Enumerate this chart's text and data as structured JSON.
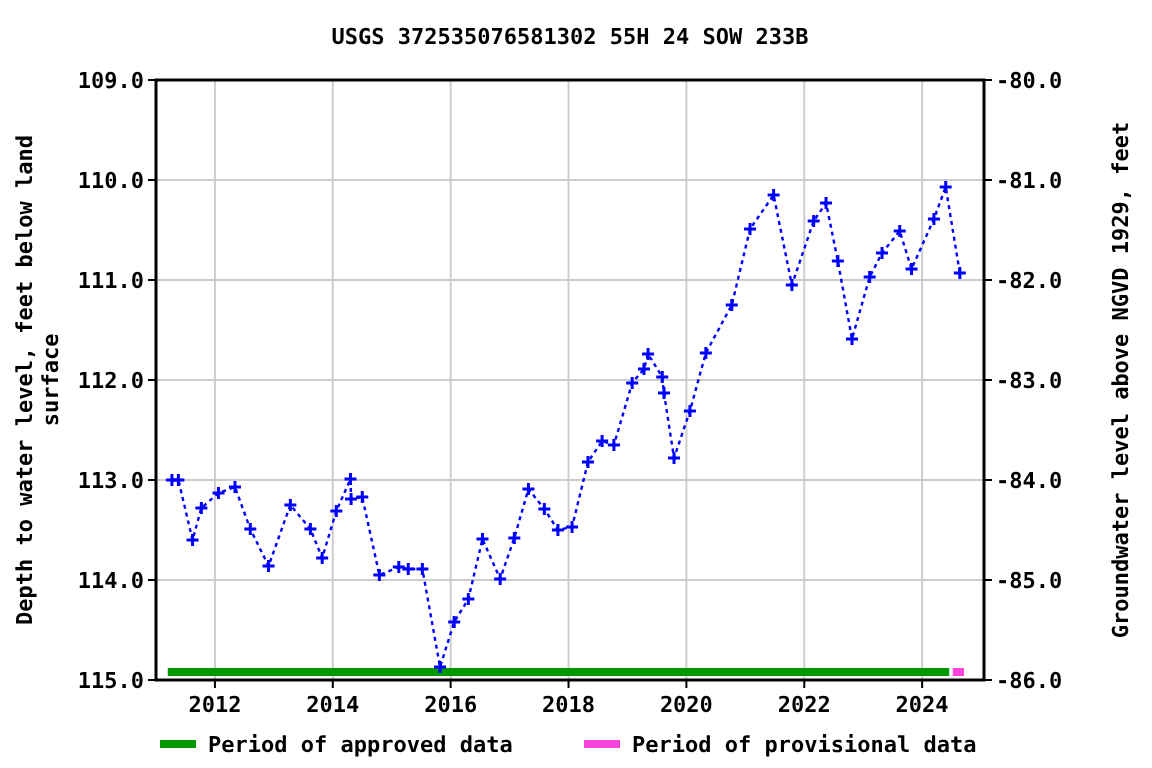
{
  "chart_data": {
    "type": "line",
    "title": "USGS 372535076581302 55H 24 SOW 233B",
    "ylabel": "Depth to water level, feet below land surface",
    "y2label": "Groundwater level above NGVD 1929, feet",
    "xlim": [
      2011,
      2025.05
    ],
    "xticks": [
      2012,
      2014,
      2016,
      2018,
      2020,
      2022,
      2024
    ],
    "ylim": [
      115,
      109
    ],
    "yticks": [
      {
        "value": 109,
        "label": "109.0"
      },
      {
        "value": 110,
        "label": "110.0"
      },
      {
        "value": 111,
        "label": "111.0"
      },
      {
        "value": 112,
        "label": "112.0"
      },
      {
        "value": 113,
        "label": "113.0"
      },
      {
        "value": 114,
        "label": "114.0"
      },
      {
        "value": 115,
        "label": "115.0"
      }
    ],
    "y2lim": [
      -86,
      -80
    ],
    "y2ticks": [
      {
        "value": -80,
        "label": "-80.0"
      },
      {
        "value": -81,
        "label": "-81.0"
      },
      {
        "value": -82,
        "label": "-82.0"
      },
      {
        "value": -83,
        "label": "-83.0"
      },
      {
        "value": -84,
        "label": "-84.0"
      },
      {
        "value": -85,
        "label": "-85.0"
      },
      {
        "value": -86,
        "label": "-86.0"
      }
    ],
    "grid": true,
    "marker": "cross",
    "line_style": "dotted",
    "legend": "bottom",
    "x": [
      2011.27,
      2011.38,
      2011.62,
      2011.77,
      2012.06,
      2012.34,
      2012.6,
      2012.91,
      2013.28,
      2013.62,
      2013.82,
      2014.06,
      2014.3,
      2014.31,
      2014.5,
      2014.79,
      2015.12,
      2015.28,
      2015.52,
      2015.82,
      2016.06,
      2016.3,
      2016.54,
      2016.84,
      2017.08,
      2017.32,
      2017.59,
      2017.82,
      2018.06,
      2018.33,
      2018.57,
      2018.77,
      2019.08,
      2019.28,
      2019.35,
      2019.59,
      2019.62,
      2019.79,
      2020.06,
      2020.33,
      2020.77,
      2021.08,
      2021.48,
      2021.79,
      2022.16,
      2022.37,
      2022.57,
      2022.81,
      2023.11,
      2023.32,
      2023.62,
      2023.82,
      2024.2,
      2024.4,
      2024.64
    ],
    "series": [
      {
        "color": "#0000ff",
        "values": [
          113.0,
          113.0,
          113.6,
          113.28,
          113.13,
          113.07,
          113.49,
          113.86,
          113.25,
          113.49,
          113.78,
          113.31,
          112.99,
          113.19,
          113.17,
          113.95,
          113.87,
          113.89,
          113.89,
          114.87,
          114.42,
          114.19,
          113.59,
          113.99,
          113.58,
          113.09,
          113.29,
          113.5,
          113.47,
          112.82,
          112.61,
          112.65,
          112.03,
          111.89,
          111.74,
          111.97,
          112.13,
          112.78,
          112.31,
          111.73,
          111.25,
          110.49,
          110.15,
          111.05,
          110.41,
          110.23,
          110.81,
          111.59,
          110.97,
          110.73,
          110.51,
          110.89,
          110.39,
          110.07,
          110.93
        ]
      },
      {
        "name": "Period of approved data",
        "color": "#009900",
        "marker": "none",
        "line_style": "solid",
        "x": [
          2011.2,
          2024.46
        ],
        "values": [
          114.92,
          114.92
        ]
      },
      {
        "name": "Period of provisional data",
        "color": "#ff44dd",
        "marker": "none",
        "line_style": "solid",
        "x": [
          2024.52,
          2024.71
        ],
        "values": [
          114.92,
          114.92
        ]
      }
    ]
  }
}
